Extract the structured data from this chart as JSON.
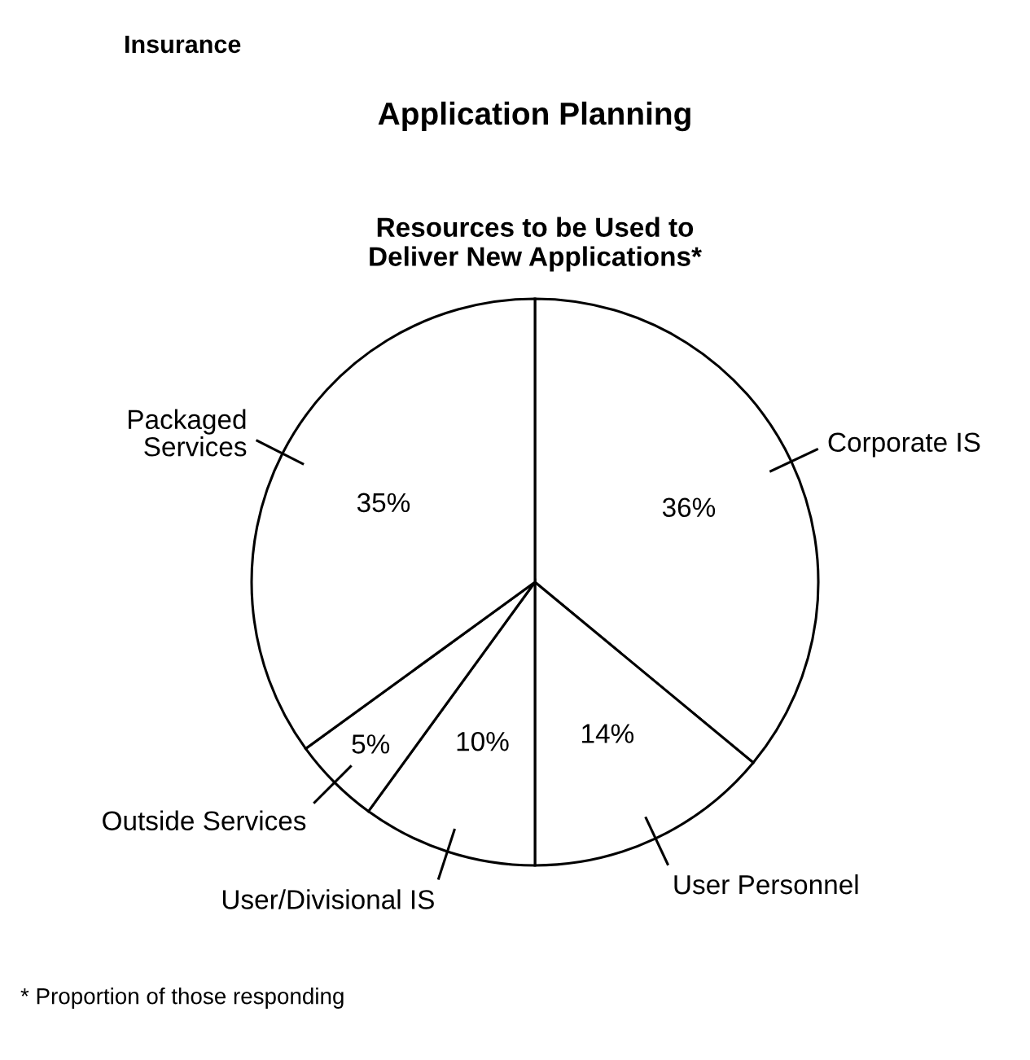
{
  "chart_data": {
    "type": "pie",
    "title": "Application Planning",
    "subtitle": "Resources to be Used to\nDeliver New Applications*",
    "annotations": [
      "Insurance",
      "* Proportion of those responding"
    ],
    "categories": [
      "Corporate IS",
      "User Personnel",
      "User/Divisional IS",
      "Outside Services",
      "Packaged\nServices"
    ],
    "values": [
      36,
      14,
      10,
      5,
      35
    ],
    "value_labels": [
      "36%",
      "14%",
      "10%",
      "5%",
      "35%"
    ],
    "colors": [
      "#ffffff",
      "#ffffff",
      "#ffffff",
      "#ffffff",
      "#ffffff"
    ],
    "legend": false
  }
}
